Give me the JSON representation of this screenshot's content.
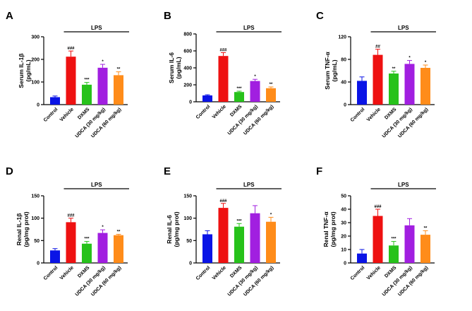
{
  "chart_data": [
    {
      "type": "bar",
      "panel": "A",
      "ylabel": [
        "Serum IL-1β",
        "(pg/mL)"
      ],
      "ylim": [
        0,
        300
      ],
      "yticks": [
        0,
        100,
        200,
        300
      ],
      "lps_label": "LPS",
      "categories": [
        "Control",
        "Vehicle",
        "DXMS",
        "UDCA (30 mg/kg)",
        "UDCA (60 mg/kg)"
      ],
      "colors": [
        "#0a14e6",
        "#ee1111",
        "#27c21b",
        "#a11fe0",
        "#ff8c1a"
      ],
      "values": [
        33,
        212,
        88,
        163,
        130
      ],
      "errors": [
        5,
        25,
        10,
        15,
        15
      ],
      "significance": [
        "",
        "###",
        "***",
        "*",
        "**"
      ]
    },
    {
      "type": "bar",
      "panel": "B",
      "ylabel": [
        "Serum IL-6",
        "(pg/mL)"
      ],
      "ylim": [
        0,
        800
      ],
      "yticks": [
        0,
        200,
        400,
        600,
        800
      ],
      "lps_label": "LPS",
      "categories": [
        "Control",
        "Vehicle",
        "DXMS",
        "UDCA (30 mg/kg)",
        "UDCA (60 mg/kg)"
      ],
      "colors": [
        "#0a14e6",
        "#ee1111",
        "#27c21b",
        "#a11fe0",
        "#ff8c1a"
      ],
      "values": [
        75,
        540,
        115,
        245,
        160
      ],
      "errors": [
        8,
        40,
        10,
        20,
        15
      ],
      "significance": [
        "",
        "###",
        "***",
        "*",
        "**"
      ]
    },
    {
      "type": "bar",
      "panel": "C",
      "ylabel": [
        "Serum TNF-α",
        "(pg/mL)"
      ],
      "ylim": [
        0,
        120
      ],
      "yticks": [
        0,
        40,
        80,
        120
      ],
      "lps_label": "LPS",
      "categories": [
        "Control",
        "Vehicle",
        "DXMS",
        "UDCA (30 mg/kg)",
        "UDCA (60 mg/kg)"
      ],
      "colors": [
        "#0a14e6",
        "#ee1111",
        "#27c21b",
        "#a11fe0",
        "#ff8c1a"
      ],
      "values": [
        42,
        88,
        55,
        72,
        65
      ],
      "errors": [
        7,
        10,
        4,
        6,
        5
      ],
      "significance": [
        "",
        "##",
        "**",
        "*",
        "*"
      ]
    },
    {
      "type": "bar",
      "panel": "D",
      "ylabel": [
        "Renal IL-1β",
        "(pg/mg prot)"
      ],
      "ylim": [
        0,
        150
      ],
      "yticks": [
        0,
        50,
        100,
        150
      ],
      "lps_label": "LPS",
      "categories": [
        "Control",
        "Vehicle",
        "DXMS",
        "UDCA (30 mg/kg)",
        "UDCA (60 mg/kg)"
      ],
      "colors": [
        "#0a14e6",
        "#ee1111",
        "#27c21b",
        "#a11fe0",
        "#ff8c1a"
      ],
      "values": [
        28,
        91,
        43,
        67,
        62
      ],
      "errors": [
        4,
        9,
        5,
        7,
        2
      ],
      "significance": [
        "",
        "###",
        "***",
        "*",
        "**"
      ]
    },
    {
      "type": "bar",
      "panel": "E",
      "ylabel": [
        "Renal IL-6",
        "(pg/mg prot)"
      ],
      "ylim": [
        0,
        150
      ],
      "yticks": [
        0,
        50,
        100,
        150
      ],
      "lps_label": "LPS",
      "categories": [
        "Control",
        "Vehicle",
        "DXMS",
        "UDCA (30 mg/kg)",
        "UDCA (60 mg/kg)"
      ],
      "colors": [
        "#0a14e6",
        "#ee1111",
        "#27c21b",
        "#a11fe0",
        "#ff8c1a"
      ],
      "values": [
        64,
        123,
        81,
        111,
        92
      ],
      "errors": [
        8,
        10,
        7,
        17,
        10
      ],
      "significance": [
        "",
        "###",
        "***",
        "",
        "*"
      ]
    },
    {
      "type": "bar",
      "panel": "F",
      "ylabel": [
        "Renal TNF-α",
        "(pg/mg prot)"
      ],
      "ylim": [
        0,
        50
      ],
      "yticks": [
        0,
        10,
        20,
        30,
        40,
        50
      ],
      "lps_label": "LPS",
      "categories": [
        "Control",
        "Vehicle",
        "DXMS",
        "UDCA (30 mg/kg)",
        "UDCA (60 mg/kg)"
      ],
      "colors": [
        "#0a14e6",
        "#ee1111",
        "#27c21b",
        "#a11fe0",
        "#ff8c1a"
      ],
      "values": [
        7,
        35,
        13,
        28,
        21
      ],
      "errors": [
        3,
        5,
        3,
        5,
        3
      ],
      "significance": [
        "",
        "###",
        "***",
        "",
        "**"
      ]
    }
  ]
}
